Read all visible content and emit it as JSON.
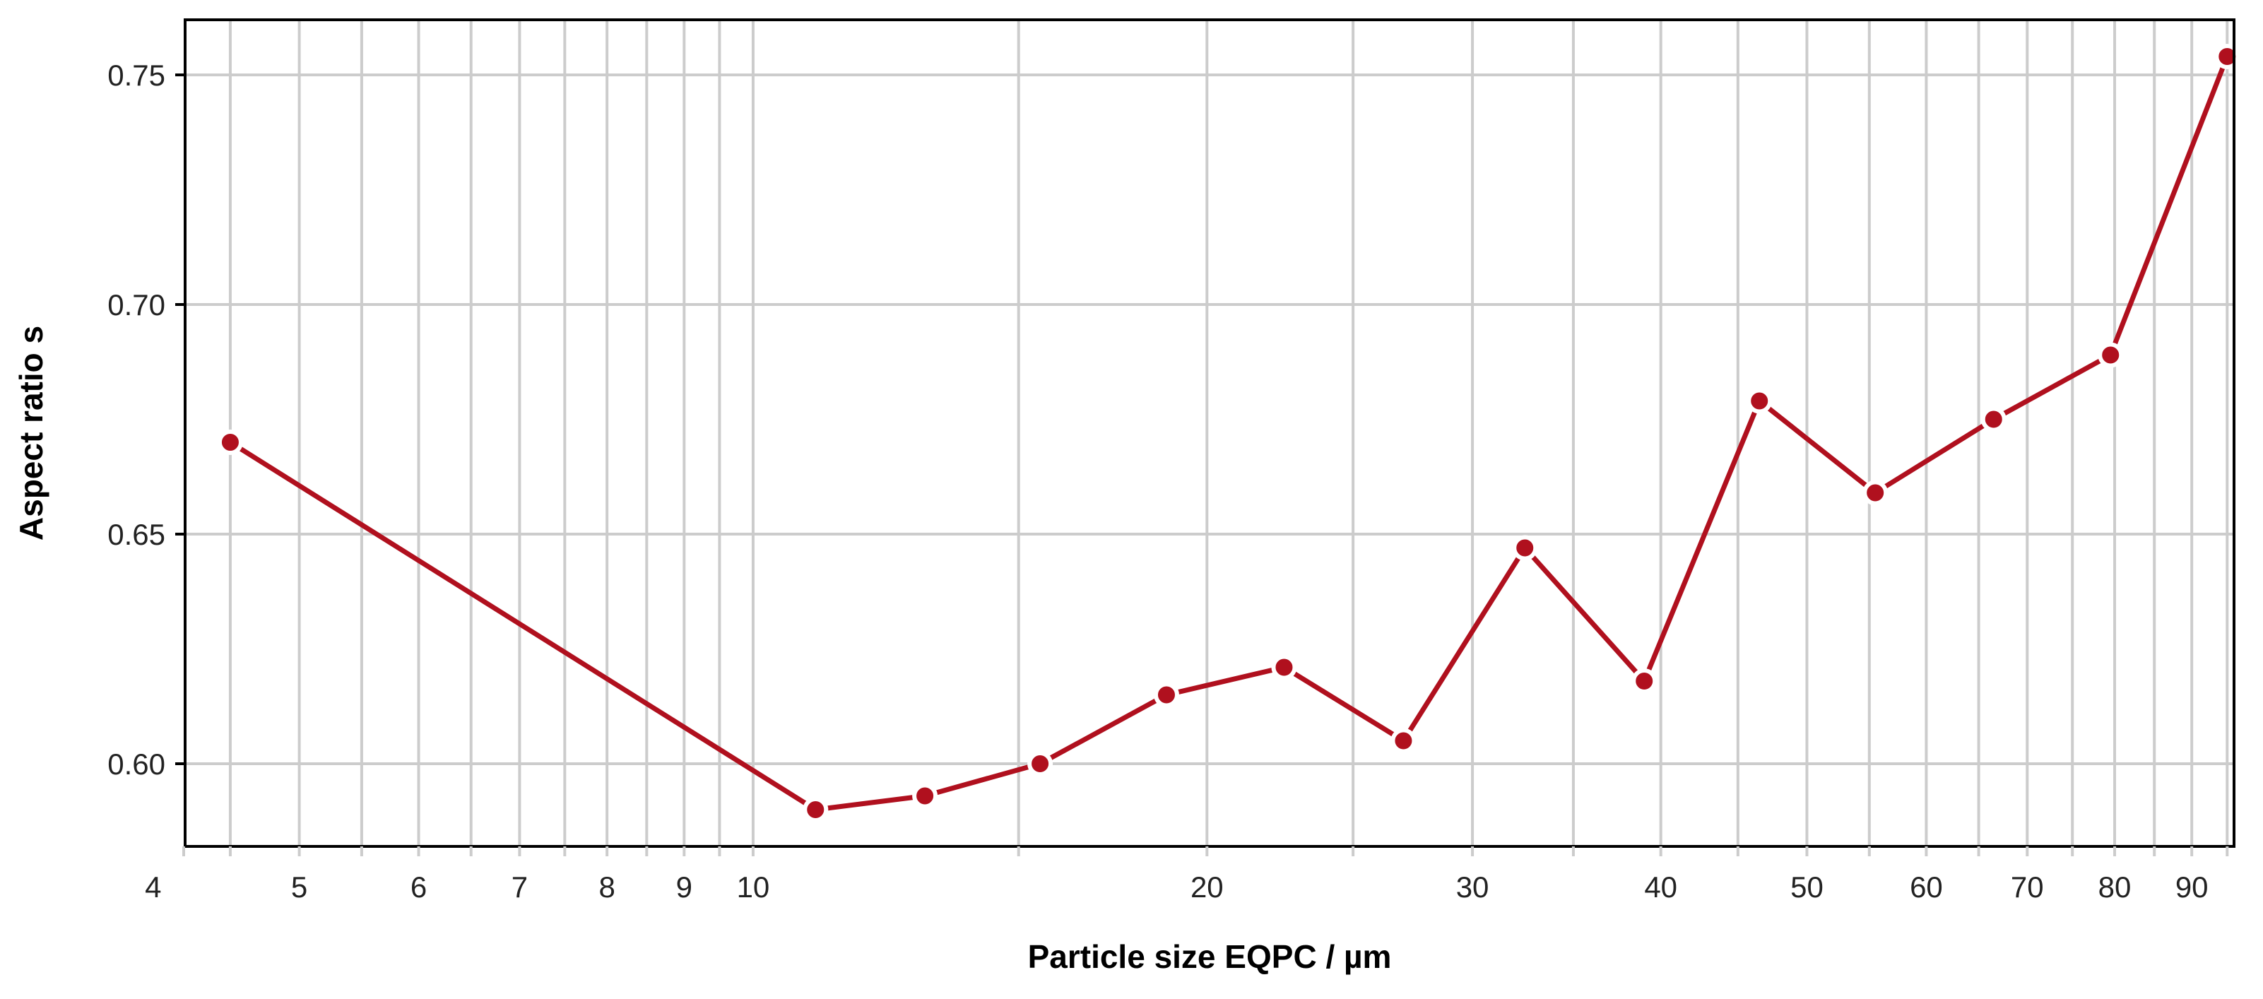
{
  "chart_data": {
    "type": "line",
    "title": "",
    "xlabel": "Particle size EQPC / µm",
    "ylabel": "Aspect ratio s",
    "x_scale": "log",
    "xlim": [
      4.2,
      96
    ],
    "ylim": [
      0.582,
      0.762
    ],
    "x_ticks": [
      4,
      5,
      6,
      7,
      8,
      9,
      10,
      20,
      30,
      40,
      50,
      60,
      70,
      80,
      90
    ],
    "x_tick_labels": [
      "4",
      "5",
      "6",
      "7",
      "8",
      "9",
      "10",
      "20",
      "30",
      "40",
      "50",
      "60",
      "70",
      "80",
      "90"
    ],
    "x_minor_gridlines": [
      4.5,
      5.5,
      6.5,
      7.5,
      8.5,
      9.5,
      15,
      25,
      35,
      45,
      55,
      65,
      75,
      85,
      95
    ],
    "y_ticks": [
      0.6,
      0.65,
      0.7,
      0.75
    ],
    "y_tick_labels": [
      "0.60",
      "0.65",
      "0.70",
      "0.75"
    ],
    "grid": true,
    "series": [
      {
        "color": "#b0101e",
        "x": [
          4.5,
          11.0,
          13.0,
          15.5,
          18.8,
          22.5,
          27.0,
          32.5,
          39.0,
          46.5,
          55.5,
          66.5,
          79.5,
          95.0
        ],
        "y": [
          0.67,
          0.59,
          0.593,
          0.6,
          0.615,
          0.621,
          0.605,
          0.647,
          0.618,
          0.679,
          0.659,
          0.675,
          0.689,
          0.754
        ]
      }
    ]
  }
}
